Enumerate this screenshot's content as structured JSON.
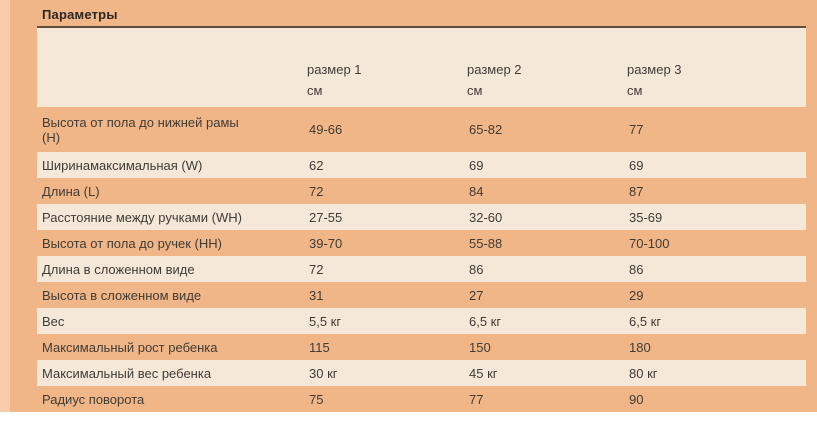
{
  "title": "Параметры",
  "colors": {
    "panel_orange": "#f1b687",
    "row_cream": "#f5e8d9",
    "left_strip_pink": "#f8cba9",
    "text": "#403c36",
    "title_underline": "#3e342a"
  },
  "table": {
    "columns": [
      {
        "label": "размер 1",
        "unit": "см"
      },
      {
        "label": "размер 2",
        "unit": "см"
      },
      {
        "label": "размер 3",
        "unit": "см"
      }
    ],
    "rows": [
      {
        "label": "Высота от пола до нижней рамы\n(H)",
        "values": [
          "49-66",
          "65-82",
          "77"
        ]
      },
      {
        "label": "Ширинамаксимальная (W)",
        "values": [
          "62",
          "69",
          "69"
        ]
      },
      {
        "label": "Длина (L)",
        "values": [
          "72",
          "84",
          "87"
        ]
      },
      {
        "label": "Расстояние между ручками (WH)",
        "values": [
          "27-55",
          "32-60",
          "35-69"
        ]
      },
      {
        "label": "Высота от пола до ручек (HH)",
        "values": [
          "39-70",
          "55-88",
          "70-100"
        ]
      },
      {
        "label": "Длина в сложенном виде",
        "values": [
          "72",
          "86",
          "86"
        ]
      },
      {
        "label": "Высота в сложенном виде",
        "values": [
          "31",
          "27",
          "29"
        ]
      },
      {
        "label": "Вес",
        "values": [
          "5,5 кг",
          "6,5 кг",
          "6,5 кг"
        ]
      },
      {
        "label": "Максимальный рост ребенка",
        "values": [
          "115",
          "150",
          "180"
        ]
      },
      {
        "label": "Максимальный вес ребенка",
        "values": [
          "30 кг",
          "45 кг",
          "80 кг"
        ]
      },
      {
        "label": "Радиус поворота",
        "values": [
          "75",
          "77",
          "90"
        ]
      }
    ]
  }
}
